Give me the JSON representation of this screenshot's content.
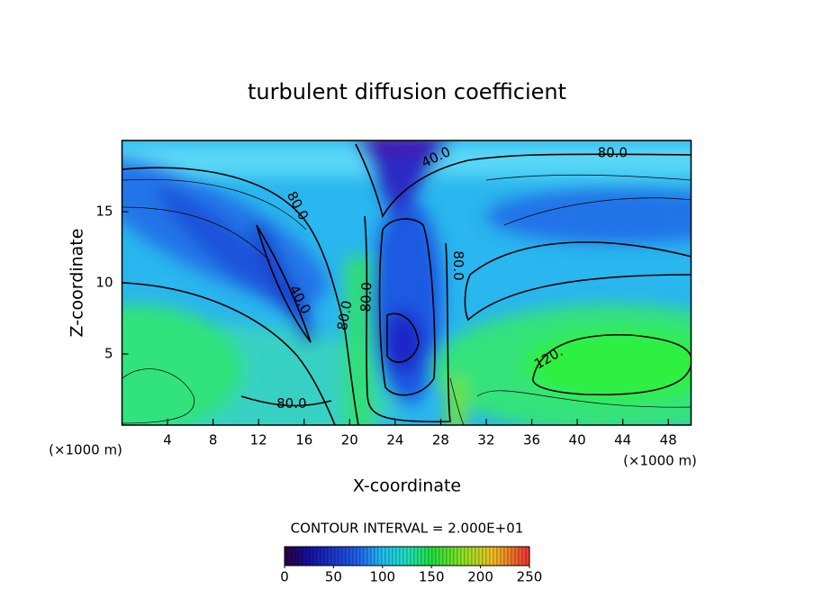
{
  "chart_data": {
    "type": "contour",
    "title": "turbulent diffusion coefficient",
    "x_label": "X-coordinate",
    "y_label": "Z-coordinate",
    "x_unit": "(×1000 m)",
    "y_unit": "(×1000 m)",
    "xlim": [
      0,
      50
    ],
    "ylim": [
      0,
      20
    ],
    "xticks": [
      4,
      8,
      12,
      16,
      20,
      24,
      28,
      32,
      36,
      40,
      44,
      48
    ],
    "yticks": [
      5,
      10,
      15
    ],
    "contour_labels": [
      {
        "text": "80.0",
        "x": 43.1,
        "y": 19.1
      },
      {
        "text": "40.0",
        "x": 27.6,
        "y": 18.8
      },
      {
        "text": "80.0",
        "x": 15.4,
        "y": 15.4
      },
      {
        "text": "40.0",
        "x": 15.6,
        "y": 8.8
      },
      {
        "text": "80.0",
        "x": 19.6,
        "y": 7.7
      },
      {
        "text": "80.0",
        "x": 21.5,
        "y": 9.0
      },
      {
        "text": "80.0",
        "x": 29.5,
        "y": 11.2
      },
      {
        "text": "120.",
        "x": 37.5,
        "y": 4.7
      },
      {
        "text": "80.0",
        "x": 14.9,
        "y": 1.5
      }
    ],
    "contour_interval": "CONTOUR INTERVAL = 2.000E+01",
    "colorbar": {
      "clim": [
        0,
        250
      ],
      "ticks": [
        0,
        50,
        100,
        150,
        200,
        250
      ]
    }
  }
}
